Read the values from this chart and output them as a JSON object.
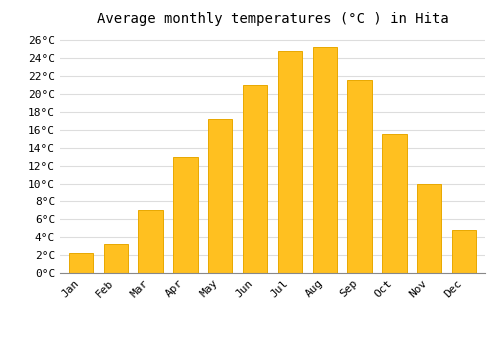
{
  "title": "Average monthly temperatures (°C ) in Hita",
  "months": [
    "Jan",
    "Feb",
    "Mar",
    "Apr",
    "May",
    "Jun",
    "Jul",
    "Aug",
    "Sep",
    "Oct",
    "Nov",
    "Dec"
  ],
  "values": [
    2.2,
    3.2,
    7.0,
    13.0,
    17.2,
    21.0,
    24.8,
    25.3,
    21.6,
    15.5,
    10.0,
    4.8
  ],
  "bar_color": "#FFC020",
  "bar_edge_color": "#E8A800",
  "background_color": "#FFFFFF",
  "grid_color": "#DDDDDD",
  "ylim": [
    0,
    27
  ],
  "yticks": [
    0,
    2,
    4,
    6,
    8,
    10,
    12,
    14,
    16,
    18,
    20,
    22,
    24,
    26
  ],
  "title_fontsize": 10,
  "tick_fontsize": 8,
  "font_family": "monospace"
}
